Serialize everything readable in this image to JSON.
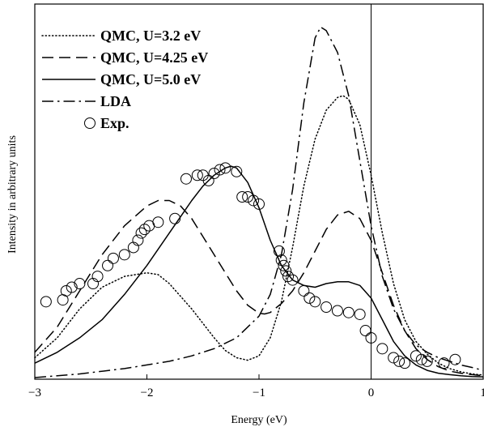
{
  "chart_data": {
    "type": "line",
    "title": "",
    "xlabel": "Energy (eV)",
    "ylabel": "Intensity in arbitrary units",
    "xlim": [
      -3,
      1
    ],
    "ylim": [
      0,
      1
    ],
    "xticks": [
      -3,
      -2,
      -1,
      0,
      1
    ],
    "xtick_labels": [
      "−3",
      "−2",
      "−1",
      "0",
      "1"
    ],
    "yticks_shown": false,
    "grid": false,
    "vertical_line_x": 0,
    "legend_position": "top-left",
    "series": [
      {
        "name": "QMC, U=3.2 eV",
        "style": "dotted",
        "x": [
          -3.0,
          -2.8,
          -2.6,
          -2.4,
          -2.2,
          -2.0,
          -1.9,
          -1.8,
          -1.6,
          -1.4,
          -1.3,
          -1.2,
          -1.1,
          -1.0,
          -0.9,
          -0.8,
          -0.7,
          -0.6,
          -0.5,
          -0.4,
          -0.3,
          -0.25,
          -0.2,
          -0.1,
          0.0,
          0.1,
          0.2,
          0.3,
          0.4,
          0.5,
          0.6,
          0.7,
          0.8,
          0.9,
          1.0
        ],
        "y": [
          0.055,
          0.11,
          0.19,
          0.25,
          0.28,
          0.29,
          0.285,
          0.26,
          0.19,
          0.11,
          0.075,
          0.055,
          0.048,
          0.06,
          0.11,
          0.21,
          0.36,
          0.53,
          0.66,
          0.74,
          0.775,
          0.78,
          0.77,
          0.7,
          0.56,
          0.4,
          0.26,
          0.16,
          0.1,
          0.065,
          0.04,
          0.025,
          0.016,
          0.01,
          0.007
        ]
      },
      {
        "name": "QMC, U=4.25 eV",
        "style": "dashed",
        "x": [
          -3.0,
          -2.8,
          -2.6,
          -2.4,
          -2.2,
          -2.0,
          -1.9,
          -1.8,
          -1.7,
          -1.6,
          -1.5,
          -1.4,
          -1.3,
          -1.2,
          -1.1,
          -1.0,
          -0.95,
          -0.9,
          -0.8,
          -0.7,
          -0.6,
          -0.5,
          -0.4,
          -0.3,
          -0.2,
          -0.1,
          0.0,
          0.1,
          0.2,
          0.3,
          0.4,
          0.5,
          0.6,
          0.7,
          0.8,
          0.9,
          1.0
        ],
        "y": [
          0.07,
          0.14,
          0.24,
          0.34,
          0.42,
          0.475,
          0.49,
          0.49,
          0.475,
          0.44,
          0.39,
          0.34,
          0.29,
          0.24,
          0.2,
          0.178,
          0.176,
          0.18,
          0.205,
          0.24,
          0.29,
          0.35,
          0.41,
          0.45,
          0.46,
          0.44,
          0.38,
          0.29,
          0.2,
          0.13,
          0.08,
          0.05,
          0.03,
          0.018,
          0.012,
          0.008,
          0.005
        ]
      },
      {
        "name": "QMC, U=5.0 eV",
        "style": "solid",
        "x": [
          -3.0,
          -2.8,
          -2.6,
          -2.4,
          -2.2,
          -2.0,
          -1.8,
          -1.6,
          -1.5,
          -1.4,
          -1.3,
          -1.25,
          -1.2,
          -1.1,
          -1.0,
          -0.9,
          -0.8,
          -0.7,
          -0.6,
          -0.5,
          -0.4,
          -0.3,
          -0.2,
          -0.1,
          0.0,
          0.1,
          0.2,
          0.3,
          0.4,
          0.5,
          0.6,
          0.7,
          0.8,
          0.9,
          1.0
        ],
        "y": [
          0.04,
          0.07,
          0.11,
          0.16,
          0.23,
          0.31,
          0.4,
          0.49,
          0.53,
          0.56,
          0.58,
          0.585,
          0.58,
          0.54,
          0.47,
          0.38,
          0.31,
          0.27,
          0.255,
          0.25,
          0.26,
          0.265,
          0.265,
          0.255,
          0.22,
          0.16,
          0.1,
          0.06,
          0.035,
          0.02,
          0.012,
          0.008,
          0.005,
          0.003,
          0.002
        ]
      },
      {
        "name": "LDA",
        "style": "dashdot",
        "x": [
          -3.0,
          -2.6,
          -2.2,
          -1.8,
          -1.6,
          -1.4,
          -1.2,
          -1.0,
          -0.9,
          -0.8,
          -0.7,
          -0.6,
          -0.5,
          -0.45,
          -0.4,
          -0.3,
          -0.2,
          -0.1,
          0.0,
          0.1,
          0.2,
          0.3,
          0.4,
          0.5,
          0.6,
          0.7,
          0.8,
          0.9,
          1.0
        ],
        "y": [
          0.0,
          0.01,
          0.025,
          0.045,
          0.06,
          0.08,
          0.11,
          0.17,
          0.23,
          0.34,
          0.52,
          0.76,
          0.94,
          0.97,
          0.96,
          0.9,
          0.78,
          0.6,
          0.42,
          0.28,
          0.19,
          0.13,
          0.09,
          0.07,
          0.055,
          0.045,
          0.035,
          0.028,
          0.02
        ]
      },
      {
        "name": "Exp.",
        "style": "open-circles",
        "x": [
          -2.9,
          -2.75,
          -2.72,
          -2.67,
          -2.6,
          -2.48,
          -2.44,
          -2.35,
          -2.3,
          -2.2,
          -2.12,
          -2.08,
          -2.05,
          -2.02,
          -1.98,
          -1.9,
          -1.75,
          -1.65,
          -1.55,
          -1.5,
          -1.45,
          -1.4,
          -1.35,
          -1.3,
          -1.2,
          -1.15,
          -1.1,
          -1.05,
          -1.0,
          -0.82,
          -0.8,
          -0.78,
          -0.76,
          -0.74,
          -0.7,
          -0.6,
          -0.55,
          -0.5,
          -0.4,
          -0.3,
          -0.2,
          -0.1,
          -0.05,
          0.0,
          0.1,
          0.2,
          0.25,
          0.3,
          0.4,
          0.45,
          0.5,
          0.65,
          0.75
        ],
        "y": [
          0.21,
          0.215,
          0.24,
          0.25,
          0.26,
          0.26,
          0.28,
          0.31,
          0.33,
          0.34,
          0.36,
          0.38,
          0.4,
          0.41,
          0.42,
          0.43,
          0.44,
          0.55,
          0.56,
          0.56,
          0.545,
          0.565,
          0.575,
          0.58,
          0.57,
          0.5,
          0.5,
          0.49,
          0.48,
          0.35,
          0.325,
          0.31,
          0.295,
          0.28,
          0.27,
          0.24,
          0.22,
          0.21,
          0.195,
          0.185,
          0.18,
          0.175,
          0.13,
          0.11,
          0.08,
          0.055,
          0.045,
          0.04,
          0.06,
          0.05,
          0.045,
          0.04,
          0.05
        ]
      }
    ]
  }
}
